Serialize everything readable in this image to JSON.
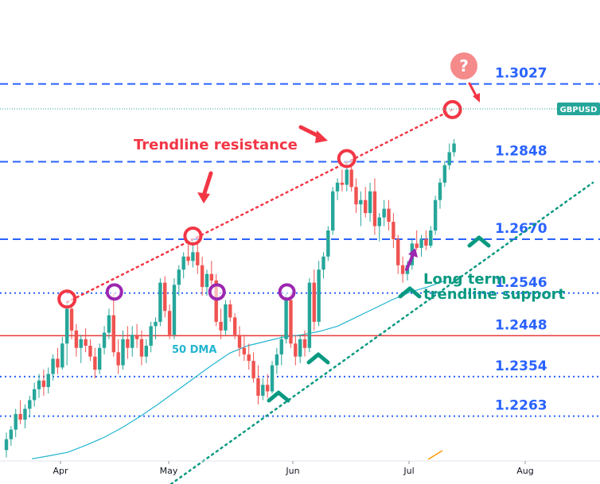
{
  "chart_data": {
    "type": "candlestick",
    "symbol": "GBPUSD",
    "x_ticks": [
      "Apr",
      "May",
      "Jun",
      "Jul",
      "Aug"
    ],
    "y_range": [
      1.216,
      1.322
    ],
    "last_price": 1.289,
    "levels": [
      {
        "label": "1.3027",
        "value": 1.3027,
        "style": "dashed",
        "color": "#2962ff"
      },
      {
        "label": "1.2848",
        "value": 1.2848,
        "style": "dashed",
        "color": "#2962ff"
      },
      {
        "label": "1.2670",
        "value": 1.267,
        "style": "dashed",
        "color": "#2962ff"
      },
      {
        "label": "1.2546",
        "value": 1.2546,
        "style": "dotted",
        "color": "#2962ff"
      },
      {
        "label": "1.2448",
        "value": 1.2448,
        "style": "solid",
        "color": "#e53935"
      },
      {
        "label": "1.2354",
        "value": 1.2354,
        "style": "dotted",
        "color": "#2962ff"
      },
      {
        "label": "1.2263",
        "value": 1.2263,
        "style": "dotted",
        "color": "#2962ff"
      }
    ],
    "candles": [
      {
        "d": "Mar 14",
        "o": 1.2185,
        "h": 1.2225,
        "l": 1.2168,
        "c": 1.221
      },
      {
        "d": "Mar 15",
        "o": 1.221,
        "h": 1.224,
        "l": 1.2195,
        "c": 1.2232
      },
      {
        "d": "Mar 16",
        "o": 1.2232,
        "h": 1.228,
        "l": 1.2215,
        "c": 1.2268
      },
      {
        "d": "Mar 17",
        "o": 1.2268,
        "h": 1.23,
        "l": 1.2245,
        "c": 1.2255
      },
      {
        "d": "Mar 20",
        "o": 1.2255,
        "h": 1.229,
        "l": 1.2235,
        "c": 1.228
      },
      {
        "d": "Mar 21",
        "o": 1.228,
        "h": 1.231,
        "l": 1.226,
        "c": 1.23
      },
      {
        "d": "Mar 22",
        "o": 1.23,
        "h": 1.234,
        "l": 1.2285,
        "c": 1.2325
      },
      {
        "d": "Mar 23",
        "o": 1.2325,
        "h": 1.236,
        "l": 1.2305,
        "c": 1.2345
      },
      {
        "d": "Mar 24",
        "o": 1.2345,
        "h": 1.237,
        "l": 1.231,
        "c": 1.233
      },
      {
        "d": "Mar 27",
        "o": 1.233,
        "h": 1.2375,
        "l": 1.2315,
        "c": 1.236
      },
      {
        "d": "Mar 28",
        "o": 1.236,
        "h": 1.2405,
        "l": 1.2345,
        "c": 1.2395
      },
      {
        "d": "Mar 29",
        "o": 1.2395,
        "h": 1.242,
        "l": 1.236,
        "c": 1.2375
      },
      {
        "d": "Mar 30",
        "o": 1.2375,
        "h": 1.2445,
        "l": 1.237,
        "c": 1.243
      },
      {
        "d": "Mar 31",
        "o": 1.243,
        "h": 1.2525,
        "l": 1.238,
        "c": 1.251
      },
      {
        "d": "Apr 3",
        "o": 1.251,
        "h": 1.252,
        "l": 1.244,
        "c": 1.246
      },
      {
        "d": "Apr 4",
        "o": 1.246,
        "h": 1.2475,
        "l": 1.24,
        "c": 1.242
      },
      {
        "d": "Apr 5",
        "o": 1.242,
        "h": 1.245,
        "l": 1.2385,
        "c": 1.244
      },
      {
        "d": "Apr 6",
        "o": 1.244,
        "h": 1.2465,
        "l": 1.241,
        "c": 1.2425
      },
      {
        "d": "Apr 7",
        "o": 1.2425,
        "h": 1.244,
        "l": 1.239,
        "c": 1.24
      },
      {
        "d": "Apr 10",
        "o": 1.24,
        "h": 1.242,
        "l": 1.235,
        "c": 1.237
      },
      {
        "d": "Apr 11",
        "o": 1.237,
        "h": 1.243,
        "l": 1.236,
        "c": 1.242
      },
      {
        "d": "Apr 12",
        "o": 1.242,
        "h": 1.247,
        "l": 1.2405,
        "c": 1.2455
      },
      {
        "d": "Apr 13",
        "o": 1.2455,
        "h": 1.251,
        "l": 1.244,
        "c": 1.2495
      },
      {
        "d": "Apr 14",
        "o": 1.2495,
        "h": 1.2545,
        "l": 1.24,
        "c": 1.241
      },
      {
        "d": "Apr 17",
        "o": 1.241,
        "h": 1.244,
        "l": 1.236,
        "c": 1.238
      },
      {
        "d": "Apr 18",
        "o": 1.238,
        "h": 1.246,
        "l": 1.237,
        "c": 1.244
      },
      {
        "d": "Apr 19",
        "o": 1.244,
        "h": 1.247,
        "l": 1.2395,
        "c": 1.242
      },
      {
        "d": "Apr 20",
        "o": 1.242,
        "h": 1.247,
        "l": 1.24,
        "c": 1.245
      },
      {
        "d": "Apr 21",
        "o": 1.245,
        "h": 1.2475,
        "l": 1.242,
        "c": 1.244
      },
      {
        "d": "Apr 24",
        "o": 1.244,
        "h": 1.246,
        "l": 1.238,
        "c": 1.24
      },
      {
        "d": "Apr 25",
        "o": 1.24,
        "h": 1.244,
        "l": 1.2385,
        "c": 1.2425
      },
      {
        "d": "Apr 26",
        "o": 1.2425,
        "h": 1.248,
        "l": 1.241,
        "c": 1.247
      },
      {
        "d": "Apr 27",
        "o": 1.247,
        "h": 1.249,
        "l": 1.244,
        "c": 1.248
      },
      {
        "d": "Apr 28",
        "o": 1.248,
        "h": 1.258,
        "l": 1.247,
        "c": 1.257
      },
      {
        "d": "May 1",
        "o": 1.257,
        "h": 1.2585,
        "l": 1.249,
        "c": 1.2505
      },
      {
        "d": "May 2",
        "o": 1.2505,
        "h": 1.252,
        "l": 1.244,
        "c": 1.245
      },
      {
        "d": "May 3",
        "o": 1.245,
        "h": 1.258,
        "l": 1.244,
        "c": 1.2565
      },
      {
        "d": "May 4",
        "o": 1.2565,
        "h": 1.261,
        "l": 1.254,
        "c": 1.26
      },
      {
        "d": "May 5",
        "o": 1.26,
        "h": 1.264,
        "l": 1.258,
        "c": 1.263
      },
      {
        "d": "May 8",
        "o": 1.263,
        "h": 1.2665,
        "l": 1.261,
        "c": 1.262
      },
      {
        "d": "May 9",
        "o": 1.262,
        "h": 1.267,
        "l": 1.2605,
        "c": 1.264
      },
      {
        "d": "May 10",
        "o": 1.264,
        "h": 1.266,
        "l": 1.259,
        "c": 1.261
      },
      {
        "d": "May 11",
        "o": 1.261,
        "h": 1.263,
        "l": 1.254,
        "c": 1.256
      },
      {
        "d": "May 12",
        "o": 1.256,
        "h": 1.26,
        "l": 1.254,
        "c": 1.259
      },
      {
        "d": "May 15",
        "o": 1.259,
        "h": 1.262,
        "l": 1.2565,
        "c": 1.2575
      },
      {
        "d": "May 16",
        "o": 1.2575,
        "h": 1.259,
        "l": 1.247,
        "c": 1.248
      },
      {
        "d": "May 17",
        "o": 1.248,
        "h": 1.251,
        "l": 1.244,
        "c": 1.246
      },
      {
        "d": "May 18",
        "o": 1.246,
        "h": 1.253,
        "l": 1.245,
        "c": 1.252
      },
      {
        "d": "May 19",
        "o": 1.252,
        "h": 1.253,
        "l": 1.248,
        "c": 1.249
      },
      {
        "d": "May 22",
        "o": 1.249,
        "h": 1.25,
        "l": 1.244,
        "c": 1.245
      },
      {
        "d": "May 23",
        "o": 1.245,
        "h": 1.247,
        "l": 1.24,
        "c": 1.242
      },
      {
        "d": "May 24",
        "o": 1.242,
        "h": 1.245,
        "l": 1.239,
        "c": 1.2405
      },
      {
        "d": "May 25",
        "o": 1.2405,
        "h": 1.243,
        "l": 1.237,
        "c": 1.239
      },
      {
        "d": "May 26",
        "o": 1.239,
        "h": 1.241,
        "l": 1.234,
        "c": 1.235
      },
      {
        "d": "May 29",
        "o": 1.235,
        "h": 1.238,
        "l": 1.229,
        "c": 1.231
      },
      {
        "d": "May 30",
        "o": 1.231,
        "h": 1.235,
        "l": 1.23,
        "c": 1.2335
      },
      {
        "d": "May 31",
        "o": 1.2335,
        "h": 1.236,
        "l": 1.2305,
        "c": 1.232
      },
      {
        "d": "Jun 1",
        "o": 1.232,
        "h": 1.239,
        "l": 1.2315,
        "c": 1.238
      },
      {
        "d": "Jun 2",
        "o": 1.238,
        "h": 1.242,
        "l": 1.236,
        "c": 1.2405
      },
      {
        "d": "Jun 5",
        "o": 1.2405,
        "h": 1.245,
        "l": 1.238,
        "c": 1.244
      },
      {
        "d": "Jun 6",
        "o": 1.244,
        "h": 1.2545,
        "l": 1.243,
        "c": 1.253
      },
      {
        "d": "Jun 7",
        "o": 1.253,
        "h": 1.2545,
        "l": 1.242,
        "c": 1.243
      },
      {
        "d": "Jun 8",
        "o": 1.243,
        "h": 1.245,
        "l": 1.238,
        "c": 1.24
      },
      {
        "d": "Jun 9",
        "o": 1.24,
        "h": 1.245,
        "l": 1.2385,
        "c": 1.244
      },
      {
        "d": "Jun 12",
        "o": 1.244,
        "h": 1.246,
        "l": 1.24,
        "c": 1.242
      },
      {
        "d": "Jun 13",
        "o": 1.242,
        "h": 1.258,
        "l": 1.241,
        "c": 1.257
      },
      {
        "d": "Jun 14",
        "o": 1.257,
        "h": 1.26,
        "l": 1.246,
        "c": 1.248
      },
      {
        "d": "Jun 15",
        "o": 1.248,
        "h": 1.262,
        "l": 1.247,
        "c": 1.26
      },
      {
        "d": "Jun 16",
        "o": 1.26,
        "h": 1.264,
        "l": 1.258,
        "c": 1.263
      },
      {
        "d": "Jun 19",
        "o": 1.263,
        "h": 1.27,
        "l": 1.262,
        "c": 1.269
      },
      {
        "d": "Jun 20",
        "o": 1.269,
        "h": 1.279,
        "l": 1.268,
        "c": 1.278
      },
      {
        "d": "Jun 21",
        "o": 1.278,
        "h": 1.281,
        "l": 1.276,
        "c": 1.28
      },
      {
        "d": "Jun 22",
        "o": 1.28,
        "h": 1.283,
        "l": 1.278,
        "c": 1.2795
      },
      {
        "d": "Jun 23",
        "o": 1.2795,
        "h": 1.285,
        "l": 1.278,
        "c": 1.283
      },
      {
        "d": "Jun 26",
        "o": 1.283,
        "h": 1.2848,
        "l": 1.278,
        "c": 1.279
      },
      {
        "d": "Jun 27",
        "o": 1.279,
        "h": 1.281,
        "l": 1.273,
        "c": 1.275
      },
      {
        "d": "Jun 28",
        "o": 1.275,
        "h": 1.278,
        "l": 1.27,
        "c": 1.276
      },
      {
        "d": "Jun 29",
        "o": 1.276,
        "h": 1.279,
        "l": 1.272,
        "c": 1.273
      },
      {
        "d": "Jun 30",
        "o": 1.273,
        "h": 1.28,
        "l": 1.271,
        "c": 1.278
      },
      {
        "d": "Jul 3",
        "o": 1.278,
        "h": 1.281,
        "l": 1.268,
        "c": 1.27
      },
      {
        "d": "Jul 4",
        "o": 1.27,
        "h": 1.273,
        "l": 1.2665,
        "c": 1.272
      },
      {
        "d": "Jul 5",
        "o": 1.272,
        "h": 1.276,
        "l": 1.27,
        "c": 1.274
      },
      {
        "d": "Jul 6",
        "o": 1.274,
        "h": 1.276,
        "l": 1.269,
        "c": 1.271
      },
      {
        "d": "Jul 7",
        "o": 1.271,
        "h": 1.273,
        "l": 1.265,
        "c": 1.267
      },
      {
        "d": "Jul 10",
        "o": 1.267,
        "h": 1.268,
        "l": 1.259,
        "c": 1.261
      },
      {
        "d": "Jul 11",
        "o": 1.261,
        "h": 1.263,
        "l": 1.257,
        "c": 1.259
      },
      {
        "d": "Jul 12",
        "o": 1.259,
        "h": 1.262,
        "l": 1.2575,
        "c": 1.261
      },
      {
        "d": "Jul 13",
        "o": 1.261,
        "h": 1.267,
        "l": 1.26,
        "c": 1.266
      },
      {
        "d": "Jul 14",
        "o": 1.266,
        "h": 1.269,
        "l": 1.2645,
        "c": 1.265
      },
      {
        "d": "Jul 17",
        "o": 1.265,
        "h": 1.268,
        "l": 1.263,
        "c": 1.267
      },
      {
        "d": "Jul 18",
        "o": 1.267,
        "h": 1.269,
        "l": 1.2645,
        "c": 1.2655
      },
      {
        "d": "Jul 19",
        "o": 1.2655,
        "h": 1.27,
        "l": 1.265,
        "c": 1.269
      },
      {
        "d": "Jul 20",
        "o": 1.269,
        "h": 1.277,
        "l": 1.268,
        "c": 1.276
      },
      {
        "d": "Jul 21",
        "o": 1.276,
        "h": 1.281,
        "l": 1.274,
        "c": 1.28
      },
      {
        "d": "Jul 24",
        "o": 1.28,
        "h": 1.285,
        "l": 1.279,
        "c": 1.284
      },
      {
        "d": "Jul 25",
        "o": 1.284,
        "h": 1.289,
        "l": 1.283,
        "c": 1.287
      },
      {
        "d": "Jul 26",
        "o": 1.287,
        "h": 1.29,
        "l": 1.286,
        "c": 1.289
      }
    ],
    "dma_50": [
      1.2165,
      1.2172,
      1.218,
      1.2196,
      1.2214,
      1.2236,
      1.2262,
      1.229,
      1.232,
      1.235,
      1.238,
      1.2408,
      1.2425,
      1.2435,
      1.2445,
      1.245,
      1.2458,
      1.247,
      1.249,
      1.251,
      1.253,
      1.2548,
      1.256,
      1.2575
    ],
    "trendline_resistance": {
      "from": {
        "d": "Mar 31",
        "v": 1.2525
      },
      "to": {
        "d": "Jul 26",
        "v": 1.2968
      }
    },
    "trendline_support": {
      "from": {
        "d": "May 29",
        "v": 1.229
      },
      "to": {
        "d": "Jul 31",
        "v": 1.28
      }
    }
  },
  "labels": {
    "symbol_tag": "GBPUSD",
    "trendline_resistance": "Trendline resistance",
    "support_line1": "Long term",
    "support_line2": "trendline support",
    "dma": "50 DMA",
    "question": "?"
  },
  "colors": {
    "bull": "#26a69a",
    "bear": "#ef5350",
    "level": "#2962ff",
    "red_level": "#e53935",
    "resistance": "#f23645",
    "support": "#089981",
    "dma": "#22b5d0",
    "purple": "#9c27b0"
  }
}
